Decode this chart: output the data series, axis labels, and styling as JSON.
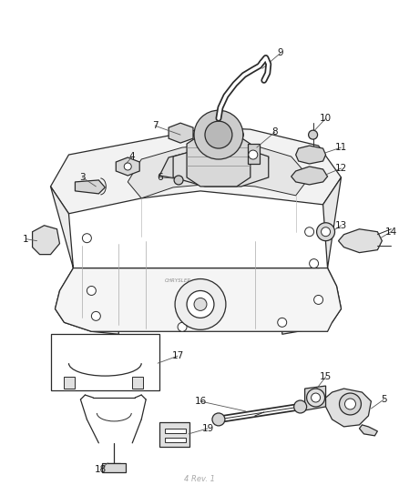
{
  "background_color": "#ffffff",
  "line_color": "#2a2a2a",
  "label_color": "#1a1a1a",
  "figsize": [
    4.39,
    5.33
  ],
  "dpi": 100,
  "watermark": "4 Rev. 1",
  "label_fontsize": 7.5
}
